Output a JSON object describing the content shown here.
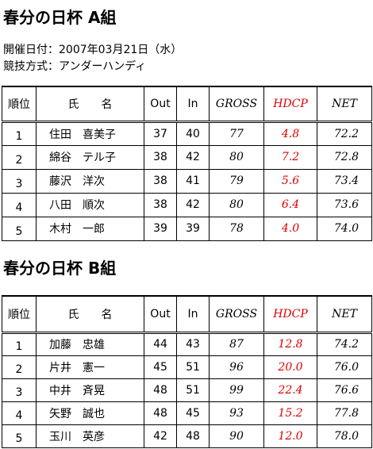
{
  "sections": [
    {
      "title": "春分の日杯 A組",
      "info": [
        "開催日付：2007年03月21日（水）",
        "競技方式：アンダーハンディ"
      ],
      "table": {
        "header": [
          "順位",
          "氏　　名",
          "Out",
          "In",
          "GROSS",
          "HDCP",
          "NET"
        ],
        "rows": [
          [
            "1",
            "住田　喜美子",
            "37",
            "40",
            "77",
            "4.8",
            "72.2"
          ],
          [
            "2",
            "綿谷　テル子",
            "38",
            "42",
            "80",
            "7.2",
            "72.8"
          ],
          [
            "3",
            "藤沢　洋次",
            "38",
            "41",
            "79",
            "5.6",
            "73.4"
          ],
          [
            "4",
            "八田　順次",
            "38",
            "42",
            "80",
            "6.4",
            "73.6"
          ],
          [
            "5",
            "木村　一郎",
            "39",
            "39",
            "78",
            "4.0",
            "74.0"
          ]
        ]
      }
    },
    {
      "title": "春分の日杯 B組",
      "table": {
        "header": [
          "順位",
          "氏　　名",
          "Out",
          "In",
          "GROSS",
          "HDCP",
          "NET"
        ],
        "rows": [
          [
            "1",
            "加藤　忠雄",
            "44",
            "43",
            "87",
            "12.8",
            "74.2"
          ],
          [
            "2",
            "片井　憲一",
            "45",
            "51",
            "96",
            "20.0",
            "76.0"
          ],
          [
            "3",
            "中井　斉晃",
            "48",
            "51",
            "99",
            "22.4",
            "76.6"
          ],
          [
            "4",
            "矢野　誠也",
            "48",
            "45",
            "93",
            "15.2",
            "77.8"
          ],
          [
            "5",
            "玉川　英彦",
            "42",
            "48",
            "90",
            "12.0",
            "78.0"
          ]
        ]
      }
    }
  ]
}
